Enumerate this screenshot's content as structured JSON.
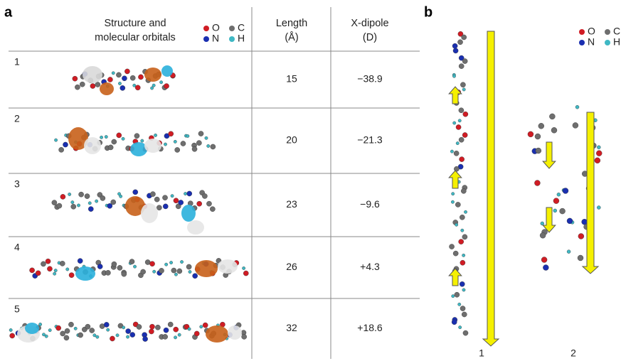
{
  "panel_a": {
    "label": "a",
    "header": {
      "structure": [
        "Structure and",
        "molecular orbitals"
      ],
      "length": [
        "Length",
        "(Å)"
      ],
      "dipole": [
        "X-dipole",
        "(D)"
      ]
    },
    "legend": [
      {
        "label": "O",
        "color": "#d01c24"
      },
      {
        "label": "C",
        "color": "#6e6e6e"
      },
      {
        "label": "N",
        "color": "#1a2fb0"
      },
      {
        "label": "H",
        "color": "#3fb8c4"
      }
    ],
    "rows": [
      {
        "id": "1",
        "length": "15",
        "dipole": "−38.9"
      },
      {
        "id": "2",
        "length": "20",
        "dipole": "−21.3"
      },
      {
        "id": "3",
        "length": "23",
        "dipole": "−9.6"
      },
      {
        "id": "4",
        "length": "26",
        "dipole": "+4.3"
      },
      {
        "id": "5",
        "length": "32",
        "dipole": "+18.6"
      }
    ]
  },
  "panel_b": {
    "label": "b",
    "legend": [
      {
        "label": "O",
        "color": "#d01c24"
      },
      {
        "label": "C",
        "color": "#6e6e6e"
      },
      {
        "label": "N",
        "color": "#1a2fb0"
      },
      {
        "label": "H",
        "color": "#3fb8c4"
      }
    ],
    "molecules": [
      "1",
      "2"
    ]
  }
}
